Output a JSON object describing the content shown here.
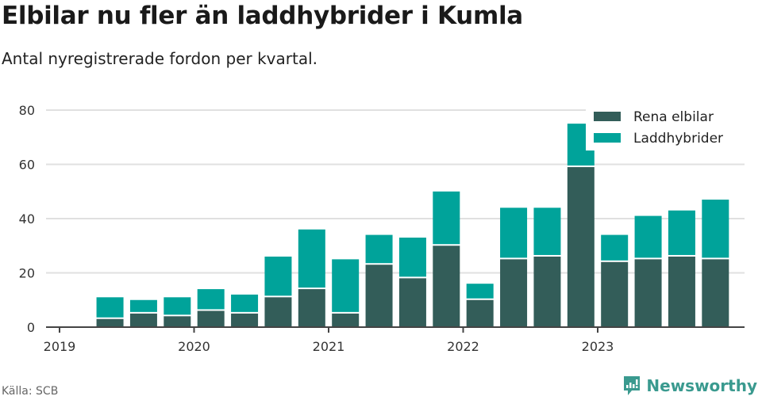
{
  "title": "Elbilar nu fler än laddhybrider i Kumla",
  "subtitle": "Antal nyregistrerade fordon per kvartal.",
  "source": "Källa: SCB",
  "brand": "Newsworthy",
  "colors": {
    "elbilar": "#335d59",
    "laddhybrider": "#00a39a",
    "grid": "#e0e0e0",
    "axis": "#444444",
    "brand": "#3a9a8f"
  },
  "chart_data": {
    "type": "bar",
    "stacked": true,
    "title": "Elbilar nu fler än laddhybrider i Kumla",
    "subtitle": "Antal nyregistrerade fordon per kvartal.",
    "xlabel": "",
    "ylabel": "",
    "ylim": [
      0,
      80
    ],
    "yticks": [
      0,
      20,
      40,
      60,
      80
    ],
    "xticks": [
      "2019",
      "2020",
      "2021",
      "2022",
      "2023"
    ],
    "grid": true,
    "legend_position": "top-right",
    "categories": [
      "2019 Q2",
      "2019 Q3",
      "2019 Q4",
      "2020 Q1",
      "2020 Q2",
      "2020 Q3",
      "2020 Q4",
      "2021 Q1",
      "2021 Q2",
      "2021 Q3",
      "2021 Q4",
      "2022 Q1",
      "2022 Q2",
      "2022 Q3",
      "2022 Q4",
      "2023 Q1",
      "2023 Q2",
      "2023 Q3",
      "2023 Q4"
    ],
    "series": [
      {
        "name": "Rena elbilar",
        "values": [
          3,
          5,
          4,
          6,
          5,
          11,
          14,
          5,
          23,
          18,
          30,
          10,
          25,
          26,
          59,
          24,
          25,
          26,
          25
        ]
      },
      {
        "name": "Laddhybrider",
        "values": [
          8,
          5,
          7,
          8,
          7,
          15,
          22,
          20,
          11,
          15,
          20,
          6,
          19,
          18,
          16,
          10,
          16,
          17,
          22
        ]
      }
    ]
  }
}
